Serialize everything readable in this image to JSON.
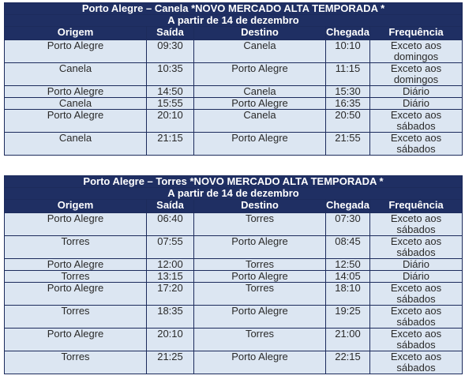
{
  "tables": [
    {
      "title": "Porto Alegre – Canela *NOVO MERCADO ALTA TEMPORADA *",
      "subtitle": "A partir de 14 de dezembro",
      "headers": [
        "Origem",
        "Saída",
        "Destino",
        "Chegada",
        "Frequência"
      ],
      "rows": [
        [
          "Porto Alegre",
          "09:30",
          "Canela",
          "10:10",
          "Exceto aos domingos"
        ],
        [
          "Canela",
          "10:35",
          "Porto Alegre",
          "11:15",
          "Exceto aos domingos"
        ],
        [
          "Porto Alegre",
          "14:50",
          "Canela",
          "15:30",
          "Diário"
        ],
        [
          "Canela",
          "15:55",
          "Porto Alegre",
          "16:35",
          "Diário"
        ],
        [
          "Porto Alegre",
          "20:10",
          "Canela",
          "20:50",
          "Exceto aos sábados"
        ],
        [
          "Canela",
          "21:15",
          "Porto Alegre",
          "21:55",
          "Exceto aos sábados"
        ]
      ]
    },
    {
      "title": "Porto Alegre – Torres *NOVO MERCADO ALTA TEMPORADA *",
      "subtitle": "A partir de 14 de dezembro",
      "headers": [
        "Origem",
        "Saída",
        "Destino",
        "Chegada",
        "Frequência"
      ],
      "rows": [
        [
          "Porto Alegre",
          "06:40",
          "Torres",
          "07:30",
          "Exceto aos sábados"
        ],
        [
          "Torres",
          "07:55",
          "Porto Alegre",
          "08:45",
          "Exceto aos sábados"
        ],
        [
          "Porto Alegre",
          "12:00",
          "Torres",
          "12:50",
          "Diário"
        ],
        [
          "Torres",
          "13:15",
          "Porto Alegre",
          "14:05",
          "Diário"
        ],
        [
          "Porto Alegre",
          "17:20",
          "Torres",
          "18:10",
          "Exceto aos sábados"
        ],
        [
          "Torres",
          "18:35",
          "Porto Alegre",
          "19:25",
          "Exceto aos sábados"
        ],
        [
          "Porto Alegre",
          "20:10",
          "Torres",
          "21:00",
          "Exceto aos sábados"
        ],
        [
          "Torres",
          "21:25",
          "Porto Alegre",
          "22:15",
          "Exceto aos sábados"
        ]
      ]
    }
  ]
}
